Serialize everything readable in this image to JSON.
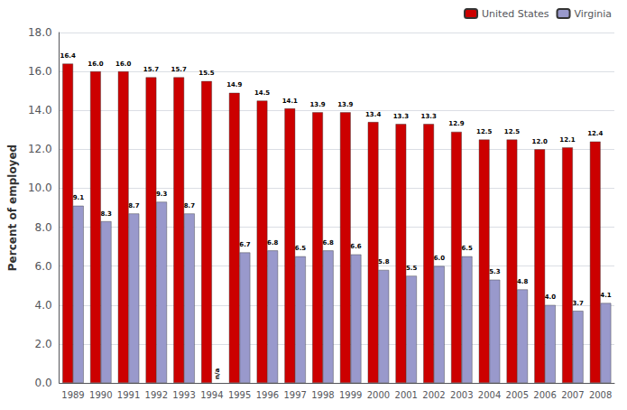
{
  "chart_data": {
    "type": "bar",
    "categories": [
      "1989",
      "1990",
      "1991",
      "1992",
      "1993",
      "1994",
      "1995",
      "1996",
      "1997",
      "1998",
      "1999",
      "2000",
      "2001",
      "2002",
      "2003",
      "2004",
      "2005",
      "2006",
      "2007",
      "2008"
    ],
    "series": [
      {
        "name": "United States",
        "color": "#CC0000",
        "values": [
          16.4,
          16.0,
          16.0,
          15.7,
          15.7,
          15.5,
          14.9,
          14.5,
          14.1,
          13.9,
          13.9,
          13.4,
          13.3,
          13.3,
          12.9,
          12.5,
          12.5,
          12.0,
          12.1,
          12.4
        ],
        "value_labels": [
          "16.4",
          "16.0",
          "16.0",
          "15.7",
          "15.7",
          "15.5",
          "14.9",
          "14.5",
          "14.1",
          "13.9",
          "13.9",
          "13.4",
          "13.3",
          "13.3",
          "12.9",
          "12.5",
          "12.5",
          "12.0",
          "12.1",
          "12.4"
        ]
      },
      {
        "name": "Virginia",
        "color": "#9999CC",
        "values": [
          9.1,
          8.3,
          8.7,
          9.3,
          8.7,
          null,
          6.7,
          6.8,
          6.5,
          6.8,
          6.6,
          5.8,
          5.5,
          6.0,
          6.5,
          5.3,
          4.8,
          4.0,
          3.7,
          4.1
        ],
        "value_labels": [
          "9.1",
          "8.3",
          "8.7",
          "9.3",
          "8.7",
          "n/a",
          "6.7",
          "6.8",
          "6.5",
          "6.8",
          "6.6",
          "5.8",
          "5.5",
          "6.0",
          "6.5",
          "5.3",
          "4.8",
          "4.0",
          "3.7",
          "4.1"
        ]
      }
    ],
    "ylabel": "Percent of employed",
    "ylim": [
      0,
      18.0
    ],
    "yticks": [
      {
        "value": 0,
        "label": "0.0"
      },
      {
        "value": 2,
        "label": "2.0"
      },
      {
        "value": 4,
        "label": "4.0"
      },
      {
        "value": 6,
        "label": "6.0"
      },
      {
        "value": 8,
        "label": "8.0"
      },
      {
        "value": 10,
        "label": "10.0"
      },
      {
        "value": 12,
        "label": "12.0"
      },
      {
        "value": 14,
        "label": "14.0"
      },
      {
        "value": 16,
        "label": "16.0"
      },
      {
        "value": 18,
        "label": "18.0"
      }
    ],
    "grid": true,
    "legend": "upper right",
    "data_labels": true
  }
}
